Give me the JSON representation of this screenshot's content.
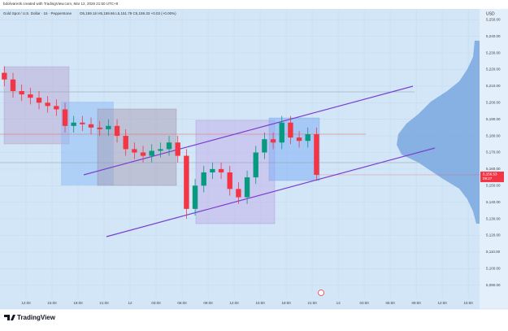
{
  "header": "bdolivare4k created with TradingView.com, Mar 12, 2026 21:50 UTC+8",
  "footer": "TradingView",
  "chart_data": {
    "type": "candlestick",
    "title": "Gold Spot / U.S. Dollar · 15 · Pepperstone",
    "ohlc_text": "O5,159.16 H5,159.66 L5,151.79 C5,159.33 +0.03 (+0.00%)",
    "currency": "USD",
    "up_color": "#089981",
    "down_color": "#f23645",
    "x": [
      -2.5,
      -1.5,
      -0.5,
      0.5,
      1.5,
      2.5,
      3.5,
      4.5,
      5.5,
      6.5,
      7.5,
      8.5,
      9.5,
      10.5,
      11.5,
      12.5,
      13.5,
      14.5,
      15.5,
      16.5,
      17.5,
      18.5,
      19.5,
      20.5,
      21.5,
      22.5,
      23.5,
      24.5,
      25.5,
      26.5,
      27.5,
      28.5,
      29.5,
      30.5,
      31.5,
      32.5,
      33.5
    ],
    "open": [
      5218,
      5214,
      5207,
      5205,
      5203,
      5200,
      5198,
      5196,
      5186,
      5188,
      5187,
      5185,
      5184,
      5186,
      5180,
      5172,
      5170,
      5168,
      5171,
      5172,
      5176,
      5168,
      5136,
      5150,
      5158,
      5160,
      5158,
      5148,
      5143,
      5155,
      5170,
      5178,
      5176,
      5188,
      5179,
      5177,
      5181
    ],
    "high": [
      5222,
      5218,
      5211,
      5209,
      5207,
      5204,
      5202,
      5200,
      5192,
      5192,
      5191,
      5189,
      5190,
      5190,
      5184,
      5176,
      5174,
      5175,
      5176,
      5180,
      5180,
      5172,
      5154,
      5162,
      5164,
      5164,
      5162,
      5152,
      5159,
      5174,
      5182,
      5182,
      5192,
      5192,
      5183,
      5185,
      5185
    ],
    "low": [
      5210,
      5203,
      5201,
      5199,
      5196,
      5194,
      5192,
      5182,
      5182,
      5183,
      5181,
      5180,
      5180,
      5176,
      5168,
      5166,
      5164,
      5164,
      5167,
      5168,
      5164,
      5130,
      5132,
      5146,
      5154,
      5154,
      5144,
      5139,
      5139,
      5151,
      5166,
      5172,
      5172,
      5175,
      5173,
      5173,
      5153
    ],
    "close": [
      5214,
      5207,
      5205,
      5203,
      5200,
      5198,
      5196,
      5186,
      5188,
      5187,
      5185,
      5184,
      5186,
      5180,
      5172,
      5170,
      5168,
      5171,
      5172,
      5176,
      5168,
      5136,
      5150,
      5158,
      5160,
      5158,
      5148,
      5143,
      5155,
      5170,
      5178,
      5176,
      5188,
      5179,
      5177,
      5181,
      5156.53
    ],
    "last_price": {
      "value": 5156.53,
      "label": "5,156.53"
    },
    "countdown": "09:27",
    "xlim": [
      -3,
      52.3
    ],
    "xticks": [
      {
        "value": 0,
        "label": "12:00"
      },
      {
        "value": 3,
        "label": "15:00"
      },
      {
        "value": 6,
        "label": "18:00"
      },
      {
        "value": 9,
        "label": "21:00"
      },
      12,
      {
        "value": 15,
        "label": "03:00"
      },
      {
        "value": 18,
        "label": "06:00"
      },
      {
        "value": 21,
        "label": "09:00"
      },
      {
        "value": 24,
        "label": "12:00"
      },
      {
        "value": 27,
        "label": "15:00"
      },
      {
        "value": 30,
        "label": "18:00"
      },
      {
        "value": 33,
        "label": "21:00"
      },
      {
        "value": 36,
        "label": "13"
      },
      {
        "value": 39,
        "label": "03:00"
      },
      {
        "value": 42,
        "label": "06:00"
      },
      {
        "value": 45,
        "label": "09:00"
      },
      {
        "value": 48,
        "label": "12:00"
      },
      {
        "value": 51,
        "label": "15:00"
      }
    ],
    "ylim": [
      5082.5,
      5256.5
    ],
    "yticks": [
      {
        "value": 5250,
        "label": "5,250.00"
      },
      {
        "value": 5240,
        "label": "5,240.00"
      },
      {
        "value": 5230,
        "label": "5,230.00"
      },
      {
        "value": 5220,
        "label": "5,220.00"
      },
      {
        "value": 5210,
        "label": "5,210.00"
      },
      {
        "value": 5200,
        "label": "5,200.00"
      },
      {
        "value": 5190,
        "label": "5,190.00"
      },
      {
        "value": 5180,
        "label": "5,180.00"
      },
      {
        "value": 5170,
        "label": "5,170.00"
      },
      {
        "value": 5160,
        "label": "5,160.00"
      },
      {
        "value": 5150,
        "label": "5,150.00"
      },
      {
        "value": 5140,
        "label": "5,140.00"
      },
      {
        "value": 5130,
        "label": "5,130.00"
      },
      {
        "value": 5120,
        "label": "5,120.00"
      },
      {
        "value": 5110,
        "label": "5,110.00"
      },
      {
        "value": 5100,
        "label": "5,100.00"
      },
      {
        "value": 5090,
        "label": "5,090.00"
      }
    ],
    "grid": true
  }
}
